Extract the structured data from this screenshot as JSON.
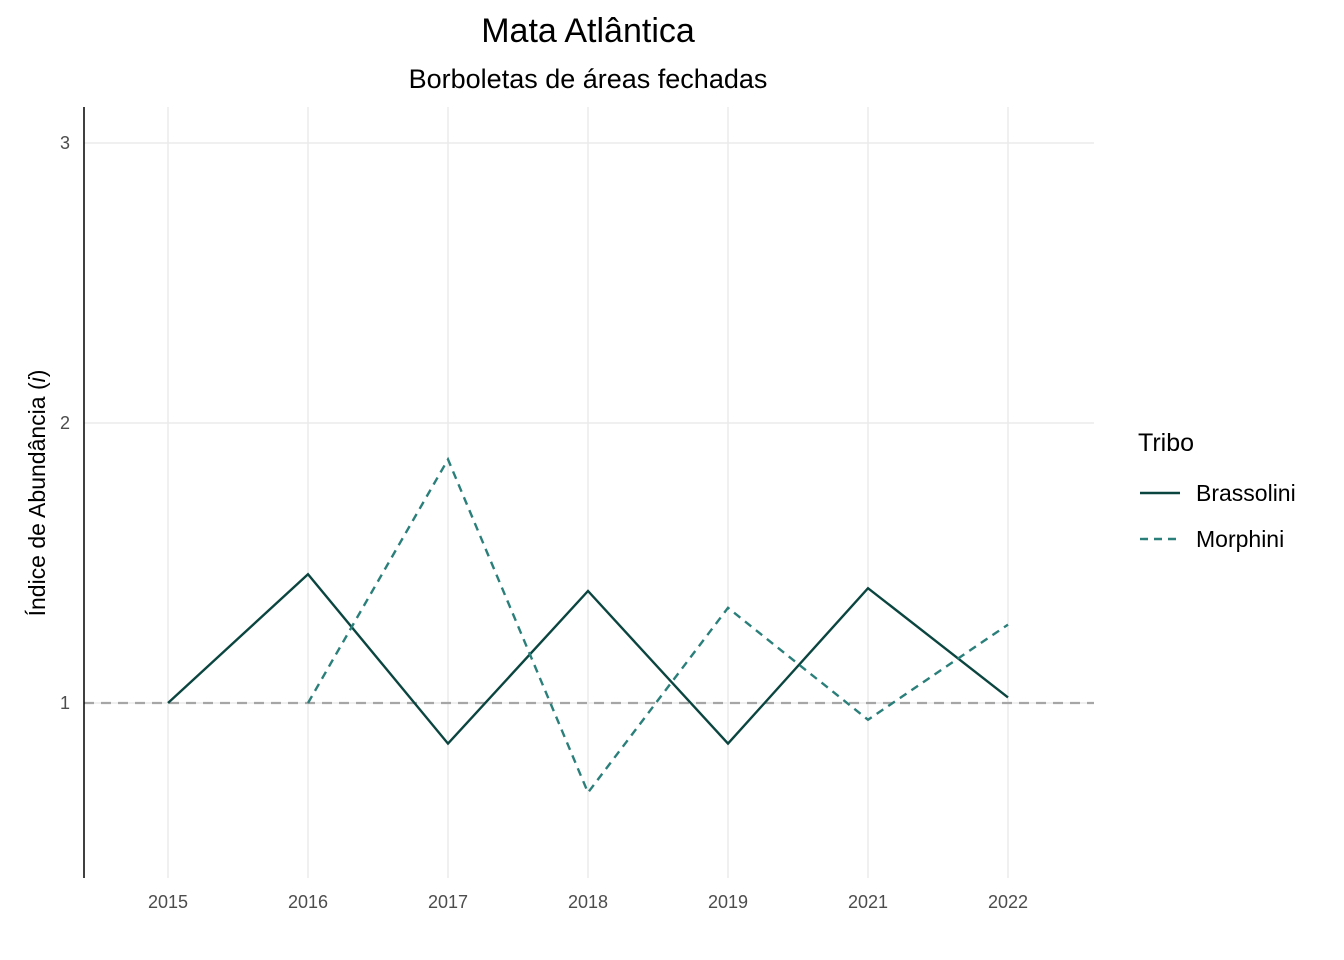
{
  "chart_data": {
    "type": "line",
    "title": "Mata Atlântica",
    "subtitle": "Borboletas de áreas fechadas",
    "ylabel_main": "Índice de Abundância (",
    "ylabel_italic": "i",
    "ylabel_close": ")",
    "xlabel": "",
    "categories": [
      "2015",
      "2016",
      "2017",
      "2018",
      "2019",
      "2021",
      "2022"
    ],
    "y_ticks": [
      1,
      2,
      3
    ],
    "y_tick_labels": [
      "1",
      "2",
      "3"
    ],
    "ylim": [
      0.37,
      3.12
    ],
    "reference_line": 1,
    "grid": true,
    "legend": {
      "title": "Tribo",
      "position": "right"
    },
    "series": [
      {
        "name": "Brassolini",
        "style": "solid",
        "color": "#0b4540",
        "values": [
          1.0,
          1.46,
          0.855,
          1.4,
          0.855,
          1.41,
          1.02
        ]
      },
      {
        "name": "Morphini",
        "style": "dashed",
        "color": "#2a7f7a",
        "values": [
          null,
          1.0,
          1.87,
          0.68,
          1.34,
          0.94,
          1.28
        ]
      }
    ],
    "colors": {
      "reference_line": "#a6a6a6",
      "grid": "#ebebeb",
      "axis": "#000000"
    }
  }
}
